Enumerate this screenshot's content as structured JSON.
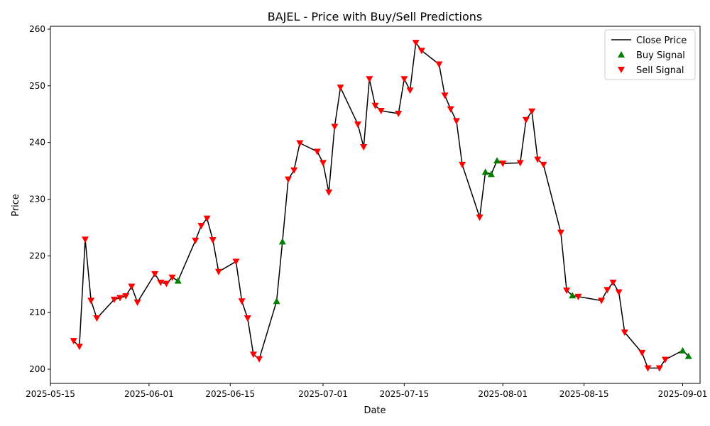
{
  "chart_data": {
    "type": "line",
    "title": "BAJEL - Price with Buy/Sell Predictions",
    "xlabel": "Date",
    "ylabel": "Price",
    "xlim": [
      "2025-05-15",
      "2025-09-04"
    ],
    "ylim": [
      197.5,
      260.5
    ],
    "x_ticks": [
      "2025-05-15",
      "2025-06-01",
      "2025-06-15",
      "2025-07-01",
      "2025-07-15",
      "2025-08-01",
      "2025-08-15",
      "2025-09-01"
    ],
    "y_ticks": [
      200,
      210,
      220,
      230,
      240,
      250,
      260
    ],
    "grid": false,
    "legend_position": "top-right",
    "legend": [
      "Close Price",
      "Buy Signal",
      "Sell Signal"
    ],
    "colors": {
      "line": "#000000",
      "buy": "#008000",
      "sell": "#ff0000"
    },
    "series": [
      {
        "name": "Close Price",
        "dates": [
          "2025-05-19",
          "2025-05-20",
          "2025-05-21",
          "2025-05-22",
          "2025-05-23",
          "2025-05-26",
          "2025-05-27",
          "2025-05-28",
          "2025-05-29",
          "2025-05-30",
          "2025-06-02",
          "2025-06-03",
          "2025-06-04",
          "2025-06-05",
          "2025-06-06",
          "2025-06-09",
          "2025-06-10",
          "2025-06-11",
          "2025-06-12",
          "2025-06-13",
          "2025-06-16",
          "2025-06-17",
          "2025-06-18",
          "2025-06-19",
          "2025-06-20",
          "2025-06-23",
          "2025-06-24",
          "2025-06-25",
          "2025-06-26",
          "2025-06-27",
          "2025-06-30",
          "2025-07-01",
          "2025-07-02",
          "2025-07-03",
          "2025-07-04",
          "2025-07-07",
          "2025-07-08",
          "2025-07-09",
          "2025-07-10",
          "2025-07-11",
          "2025-07-14",
          "2025-07-15",
          "2025-07-16",
          "2025-07-17",
          "2025-07-18",
          "2025-07-21",
          "2025-07-22",
          "2025-07-23",
          "2025-07-24",
          "2025-07-25",
          "2025-07-28",
          "2025-07-29",
          "2025-07-30",
          "2025-07-31",
          "2025-08-01",
          "2025-08-04",
          "2025-08-05",
          "2025-08-06",
          "2025-08-07",
          "2025-08-08",
          "2025-08-11",
          "2025-08-12",
          "2025-08-13",
          "2025-08-14",
          "2025-08-18",
          "2025-08-19",
          "2025-08-20",
          "2025-08-21",
          "2025-08-22",
          "2025-08-25",
          "2025-08-26",
          "2025-08-28",
          "2025-08-29",
          "2025-09-01",
          "2025-09-02"
        ],
        "values": [
          205.0,
          204.0,
          222.9,
          212.1,
          209.0,
          212.3,
          212.6,
          212.9,
          214.6,
          211.8,
          216.8,
          215.3,
          215.1,
          216.2,
          215.6,
          222.7,
          225.3,
          226.6,
          222.8,
          217.2,
          219.0,
          212.0,
          209.0,
          202.6,
          201.8,
          212.0,
          222.5,
          233.5,
          235.1,
          239.9,
          238.4,
          236.4,
          231.2,
          242.8,
          249.7,
          243.2,
          239.2,
          251.2,
          246.5,
          245.6,
          245.1,
          251.2,
          249.2,
          257.6,
          256.2,
          253.8,
          248.3,
          245.9,
          243.8,
          236.1,
          226.8,
          234.8,
          234.4,
          236.8,
          236.3,
          236.4,
          244.0,
          245.5,
          237.0,
          236.1,
          224.1,
          213.9,
          213.0,
          212.8,
          212.1,
          214.0,
          215.3,
          213.6,
          206.5,
          202.9,
          200.2,
          200.2,
          201.7,
          203.3,
          202.3
        ]
      },
      {
        "name": "Buy Signal",
        "dates": [
          "2025-06-06",
          "2025-06-23",
          "2025-06-24",
          "2025-07-29",
          "2025-07-30",
          "2025-07-31",
          "2025-08-13",
          "2025-09-01",
          "2025-09-02"
        ],
        "values": [
          215.6,
          212.0,
          222.5,
          234.8,
          234.4,
          236.8,
          213.0,
          203.3,
          202.3
        ]
      },
      {
        "name": "Sell Signal",
        "dates": [
          "2025-05-19",
          "2025-05-20",
          "2025-05-21",
          "2025-05-22",
          "2025-05-23",
          "2025-05-26",
          "2025-05-27",
          "2025-05-28",
          "2025-05-29",
          "2025-05-30",
          "2025-06-02",
          "2025-06-03",
          "2025-06-04",
          "2025-06-05",
          "2025-06-09",
          "2025-06-10",
          "2025-06-11",
          "2025-06-12",
          "2025-06-13",
          "2025-06-16",
          "2025-06-17",
          "2025-06-18",
          "2025-06-19",
          "2025-06-20",
          "2025-06-25",
          "2025-06-26",
          "2025-06-27",
          "2025-06-30",
          "2025-07-01",
          "2025-07-02",
          "2025-07-03",
          "2025-07-04",
          "2025-07-07",
          "2025-07-08",
          "2025-07-09",
          "2025-07-10",
          "2025-07-11",
          "2025-07-14",
          "2025-07-15",
          "2025-07-16",
          "2025-07-17",
          "2025-07-18",
          "2025-07-21",
          "2025-07-22",
          "2025-07-23",
          "2025-07-24",
          "2025-07-25",
          "2025-07-28",
          "2025-08-01",
          "2025-08-04",
          "2025-08-05",
          "2025-08-06",
          "2025-08-07",
          "2025-08-08",
          "2025-08-11",
          "2025-08-12",
          "2025-08-14",
          "2025-08-18",
          "2025-08-19",
          "2025-08-20",
          "2025-08-21",
          "2025-08-22",
          "2025-08-25",
          "2025-08-26",
          "2025-08-28",
          "2025-08-29"
        ],
        "values": [
          205.0,
          204.0,
          222.9,
          212.1,
          209.0,
          212.3,
          212.6,
          212.9,
          214.6,
          211.8,
          216.8,
          215.3,
          215.1,
          216.2,
          222.7,
          225.3,
          226.6,
          222.8,
          217.2,
          219.0,
          212.0,
          209.0,
          202.6,
          201.8,
          233.5,
          235.1,
          239.9,
          238.4,
          236.4,
          231.2,
          242.8,
          249.7,
          243.2,
          239.2,
          251.2,
          246.5,
          245.6,
          245.1,
          251.2,
          249.2,
          257.6,
          256.2,
          253.8,
          248.3,
          245.9,
          243.8,
          236.1,
          226.8,
          236.3,
          236.4,
          244.0,
          245.5,
          237.0,
          236.1,
          224.1,
          213.9,
          212.8,
          212.1,
          214.0,
          215.3,
          213.6,
          206.5,
          202.9,
          200.2,
          200.2,
          201.7
        ]
      }
    ]
  }
}
